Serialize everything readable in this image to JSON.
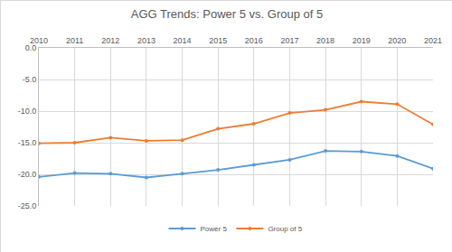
{
  "chart_data": {
    "type": "line",
    "title": "AGG Trends: Power 5 vs. Group of 5",
    "x": [
      2010,
      2011,
      2012,
      2013,
      2014,
      2015,
      2016,
      2017,
      2018,
      2019,
      2020,
      2021
    ],
    "series": [
      {
        "name": "Power 5",
        "color": "#5b9bd5",
        "marker": "circle",
        "values": [
          -20.4,
          -19.8,
          -19.9,
          -20.5,
          -19.9,
          -19.3,
          -18.5,
          -17.7,
          -16.3,
          -16.4,
          -17.1,
          -19.1
        ]
      },
      {
        "name": "Group of 5",
        "color": "#ed7d31",
        "marker": "circle",
        "values": [
          -15.1,
          -15.0,
          -14.2,
          -14.7,
          -14.6,
          -12.8,
          -12.0,
          -10.3,
          -9.8,
          -8.5,
          -8.9,
          -12.1
        ]
      }
    ],
    "xlim": [
      2010,
      2021
    ],
    "xticks": [
      2010,
      2011,
      2012,
      2013,
      2014,
      2015,
      2016,
      2017,
      2018,
      2019,
      2020,
      2021
    ],
    "ylim": [
      -25,
      0
    ],
    "yticks": [
      {
        "value": 0,
        "label": "0.0"
      },
      {
        "value": -5,
        "label": "-5.0"
      },
      {
        "value": -10,
        "label": "-10.0"
      },
      {
        "value": -15,
        "label": "-15.0"
      },
      {
        "value": -20,
        "label": "-20.0"
      },
      {
        "value": -25,
        "label": "-25.0"
      }
    ],
    "grid": true,
    "legend": "bottom"
  }
}
